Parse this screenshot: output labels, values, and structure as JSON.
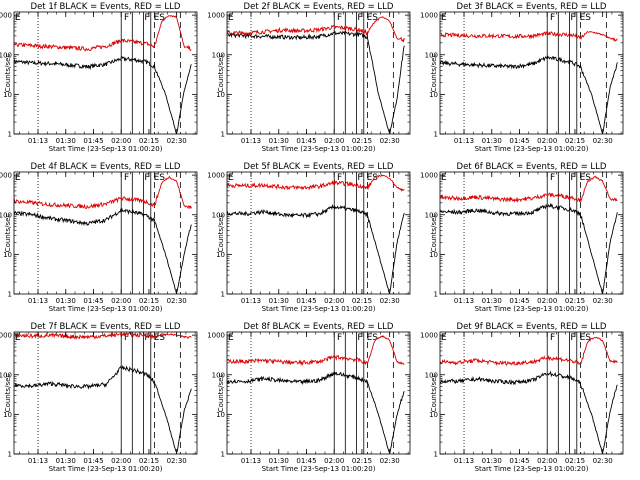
{
  "colors": {
    "events": "#000000",
    "lld": "#dd0000"
  },
  "common": {
    "xticks": [
      13,
      28,
      43,
      58,
      73,
      88
    ],
    "xtick_labels": [
      "01:13",
      "01:30",
      "01:45",
      "02:00",
      "02:15",
      "02:30"
    ],
    "xlabel": "Start Time (23-Sep-13 01:00:20)",
    "ylabel": "Counts/sec",
    "yticks": [
      1,
      10,
      100,
      1000
    ],
    "ytick_labels": [
      "1",
      "10",
      "100",
      "1000"
    ],
    "ylim": [
      1,
      1200
    ],
    "xlim": [
      0,
      99
    ],
    "dotted_line_x": 13,
    "solid_lines_x": [
      58,
      64,
      70,
      74
    ],
    "dashed_lines_x": [
      76,
      90
    ],
    "flags": [
      {
        "x": 0,
        "text": "E"
      },
      {
        "x": 59,
        "text": "F"
      },
      {
        "x": 70,
        "text": "F"
      },
      {
        "x": 75,
        "text": "ES"
      }
    ]
  },
  "chart_data": [
    {
      "type": "line",
      "title": "Det 1f BLACK = Events, RED = LLD",
      "series": [
        {
          "name": "BLACK = Events",
          "x": [
            0,
            10,
            20,
            30,
            40,
            50,
            58,
            65,
            72,
            76,
            82,
            88,
            92,
            96
          ],
          "y": [
            68,
            62,
            60,
            55,
            50,
            58,
            80,
            75,
            65,
            50,
            10,
            1,
            12,
            55
          ]
        },
        {
          "name": "RED = LLD",
          "x": [
            0,
            10,
            20,
            30,
            40,
            50,
            58,
            65,
            72,
            76,
            80,
            84,
            88,
            92,
            96
          ],
          "y": [
            180,
            170,
            160,
            150,
            140,
            165,
            230,
            210,
            190,
            160,
            700,
            1000,
            900,
            160,
            140
          ]
        }
      ]
    },
    {
      "type": "line",
      "title": "Det 2f BLACK = Events, RED = LLD",
      "series": [
        {
          "name": "BLACK = Events",
          "x": [
            0,
            10,
            20,
            30,
            40,
            50,
            58,
            65,
            72,
            76,
            82,
            88,
            92,
            96
          ],
          "y": [
            320,
            300,
            290,
            280,
            270,
            290,
            350,
            340,
            320,
            280,
            10,
            1,
            8,
            200
          ]
        },
        {
          "name": "RED = LLD",
          "x": [
            0,
            10,
            20,
            30,
            40,
            50,
            58,
            65,
            72,
            76,
            80,
            84,
            88,
            92,
            96
          ],
          "y": [
            360,
            350,
            380,
            420,
            400,
            430,
            500,
            470,
            420,
            350,
            700,
            900,
            700,
            260,
            240
          ]
        }
      ]
    },
    {
      "type": "line",
      "title": "Det 3f BLACK = Events, RED = LLD",
      "series": [
        {
          "name": "BLACK = Events",
          "x": [
            0,
            10,
            20,
            30,
            40,
            50,
            58,
            65,
            72,
            76,
            82,
            88,
            92,
            96
          ],
          "y": [
            62,
            58,
            55,
            52,
            50,
            58,
            85,
            75,
            62,
            50,
            10,
            1,
            15,
            60
          ]
        },
        {
          "name": "RED = LLD",
          "x": [
            0,
            10,
            20,
            30,
            40,
            50,
            58,
            65,
            72,
            76,
            80,
            84,
            88,
            92,
            96
          ],
          "y": [
            320,
            310,
            300,
            300,
            290,
            300,
            340,
            330,
            310,
            260,
            380,
            360,
            320,
            260,
            240
          ]
        }
      ]
    },
    {
      "type": "line",
      "title": "Det 4f BLACK = Events, RED = LLD",
      "series": [
        {
          "name": "BLACK = Events",
          "x": [
            0,
            10,
            20,
            30,
            40,
            50,
            58,
            65,
            72,
            76,
            82,
            88,
            92,
            96
          ],
          "y": [
            110,
            100,
            80,
            70,
            60,
            75,
            130,
            115,
            95,
            70,
            10,
            1,
            10,
            60
          ]
        },
        {
          "name": "RED = LLD",
          "x": [
            0,
            10,
            20,
            30,
            40,
            50,
            58,
            65,
            72,
            76,
            80,
            84,
            88,
            92,
            96
          ],
          "y": [
            220,
            200,
            180,
            170,
            160,
            190,
            260,
            240,
            210,
            170,
            650,
            900,
            700,
            170,
            150
          ]
        }
      ]
    },
    {
      "type": "line",
      "title": "Det 5f BLACK = Events, RED = LLD",
      "series": [
        {
          "name": "BLACK = Events",
          "x": [
            0,
            10,
            20,
            30,
            40,
            50,
            58,
            65,
            72,
            76,
            82,
            88,
            92,
            96
          ],
          "y": [
            110,
            105,
            120,
            100,
            95,
            105,
            160,
            140,
            120,
            95,
            10,
            1,
            20,
            120
          ]
        },
        {
          "name": "RED = LLD",
          "x": [
            0,
            10,
            20,
            30,
            40,
            50,
            58,
            65,
            72,
            76,
            80,
            84,
            88,
            92,
            96
          ],
          "y": [
            550,
            540,
            560,
            500,
            480,
            520,
            640,
            600,
            540,
            460,
            900,
            1000,
            850,
            480,
            420
          ]
        }
      ]
    },
    {
      "type": "line",
      "title": "Det 6f BLACK = Events, RED = LLD",
      "series": [
        {
          "name": "BLACK = Events",
          "x": [
            0,
            10,
            20,
            30,
            40,
            50,
            58,
            65,
            72,
            76,
            82,
            88,
            92,
            96
          ],
          "y": [
            120,
            115,
            130,
            110,
            105,
            115,
            170,
            150,
            130,
            105,
            10,
            1,
            20,
            120
          ]
        },
        {
          "name": "RED = LLD",
          "x": [
            0,
            10,
            20,
            30,
            40,
            50,
            58,
            65,
            72,
            76,
            80,
            84,
            88,
            92,
            96
          ],
          "y": [
            270,
            260,
            280,
            250,
            240,
            260,
            320,
            300,
            270,
            230,
            700,
            900,
            700,
            250,
            220
          ]
        }
      ]
    },
    {
      "type": "line",
      "title": "Det 7f BLACK = Events, RED = LLD",
      "series": [
        {
          "name": "BLACK = Events",
          "x": [
            0,
            10,
            20,
            30,
            40,
            50,
            58,
            65,
            72,
            76,
            82,
            88,
            92,
            96
          ],
          "y": [
            55,
            52,
            60,
            52,
            50,
            58,
            150,
            130,
            100,
            65,
            10,
            1,
            12,
            45
          ]
        },
        {
          "name": "RED = LLD",
          "x": [
            0,
            10,
            20,
            30,
            40,
            50,
            58,
            65,
            72,
            76,
            80,
            84,
            88,
            92,
            96
          ],
          "y": [
            1000,
            950,
            980,
            920,
            900,
            960,
            1050,
            1020,
            980,
            900,
            1000,
            1050,
            1000,
            900,
            880
          ]
        }
      ]
    },
    {
      "type": "line",
      "title": "Det 8f BLACK = Events, RED = LLD",
      "series": [
        {
          "name": "BLACK = Events",
          "x": [
            0,
            10,
            20,
            30,
            40,
            50,
            58,
            65,
            72,
            76,
            82,
            88,
            92,
            96
          ],
          "y": [
            70,
            68,
            80,
            70,
            65,
            72,
            110,
            95,
            80,
            65,
            10,
            1,
            10,
            40
          ]
        },
        {
          "name": "RED = LLD",
          "x": [
            0,
            10,
            20,
            30,
            40,
            50,
            58,
            65,
            72,
            76,
            80,
            84,
            88,
            92,
            96
          ],
          "y": [
            220,
            215,
            230,
            210,
            200,
            215,
            280,
            260,
            230,
            190,
            750,
            950,
            750,
            210,
            180
          ]
        }
      ]
    },
    {
      "type": "line",
      "title": "Det 9f BLACK = Events, RED = LLD",
      "series": [
        {
          "name": "BLACK = Events",
          "x": [
            0,
            10,
            20,
            30,
            40,
            50,
            58,
            65,
            72,
            76,
            82,
            88,
            92,
            96
          ],
          "y": [
            70,
            68,
            78,
            68,
            65,
            72,
            110,
            95,
            80,
            60,
            10,
            1,
            12,
            60
          ]
        },
        {
          "name": "RED = LLD",
          "x": [
            0,
            10,
            20,
            30,
            40,
            50,
            58,
            65,
            72,
            76,
            80,
            84,
            88,
            92,
            96
          ],
          "y": [
            210,
            205,
            230,
            200,
            195,
            210,
            270,
            250,
            220,
            180,
            700,
            900,
            720,
            220,
            200
          ]
        }
      ]
    }
  ]
}
